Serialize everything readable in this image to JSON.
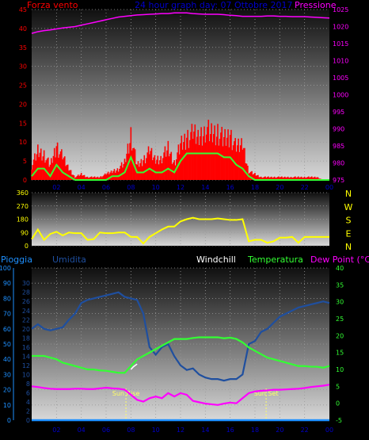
{
  "header": {
    "left_title": "Forza vento",
    "center_title": "24 hour graph day: 07 Ottobre 2017",
    "right_title": "Pressione"
  },
  "labels_bottom": {
    "pioggia": "Pioggia",
    "umidita": "Umidita",
    "windchill": "Windchill",
    "temperatura": "Temperatura",
    "dewpoint": "Dew Point (°C)"
  },
  "colors": {
    "wind": "#ff0000",
    "gust": "#ff0000",
    "wind_avg": "#33ff33",
    "pressure": "#ff00ff",
    "direction": "#ffff00",
    "humidity": "#1f4f9f",
    "temperature": "#33ff33",
    "dewpoint": "#ff00ff",
    "rain": "#1e90ff",
    "windchill": "#ffffff",
    "sun": "#ffff66"
  },
  "chart_data": [
    {
      "type": "area",
      "name": "wind",
      "x_ticks": [
        "02",
        "04",
        "06",
        "08",
        "10",
        "12",
        "14",
        "16",
        "18",
        "20",
        "22",
        "00"
      ],
      "y_left_ticks": [
        0,
        5,
        10,
        15,
        20,
        25,
        30,
        35,
        40,
        45
      ],
      "y_left_range": [
        0,
        45
      ],
      "y_right_ticks": [
        975,
        980,
        985,
        990,
        995,
        1000,
        1005,
        1010,
        1015,
        1020,
        1025
      ],
      "y_right_range": [
        975,
        1025
      ],
      "hours": [
        0,
        0.5,
        1,
        1.5,
        2,
        2.5,
        3,
        3.5,
        4,
        4.5,
        5,
        5.5,
        6,
        6.5,
        7,
        7.5,
        8,
        8.5,
        9,
        9.5,
        10,
        10.5,
        11,
        11.5,
        12,
        12.5,
        13,
        13.5,
        14,
        14.5,
        15,
        15.5,
        16,
        16.5,
        17,
        17.5,
        18,
        18.5,
        19,
        19.5,
        20,
        20.5,
        21,
        21.5,
        22,
        22.5,
        23,
        23.5,
        24
      ],
      "gust": [
        5,
        10,
        9,
        5,
        12,
        8,
        4,
        1,
        2,
        1,
        1,
        1,
        2,
        3,
        4,
        6,
        16,
        5,
        7,
        10,
        7,
        8,
        11,
        6,
        12,
        15,
        16,
        15,
        18,
        16,
        17,
        14,
        16,
        11,
        13,
        3,
        2,
        1,
        1,
        1,
        1,
        1,
        1,
        1,
        1,
        1,
        1,
        0,
        0
      ],
      "wind_avg": [
        1,
        3,
        3,
        1,
        4,
        2,
        1,
        0,
        0,
        0,
        0,
        0,
        0,
        1,
        1,
        2,
        6,
        2,
        2,
        3,
        2,
        2,
        3,
        2,
        5,
        7,
        7,
        7,
        7,
        7,
        7,
        6,
        6,
        4,
        3,
        1,
        0,
        0,
        0,
        0,
        0,
        0,
        0,
        0,
        0,
        0,
        0,
        0,
        0
      ],
      "pressure": [
        1018,
        1018.5,
        1018.8,
        1019,
        1019.3,
        1019.6,
        1019.8,
        1020,
        1020.4,
        1020.8,
        1021.2,
        1021.6,
        1022,
        1022.4,
        1022.8,
        1023,
        1023.2,
        1023.4,
        1023.5,
        1023.6,
        1023.7,
        1023.8,
        1023.8,
        1024,
        1024,
        1024,
        1023.8,
        1023.7,
        1023.6,
        1023.6,
        1023.6,
        1023.5,
        1023.3,
        1023.2,
        1023,
        1023,
        1023,
        1023,
        1023.1,
        1023.1,
        1023,
        1023,
        1022.9,
        1022.9,
        1022.9,
        1022.8,
        1022.7,
        1022.6,
        1022.5
      ]
    },
    {
      "type": "line",
      "name": "direction",
      "y_ticks": [
        0,
        90,
        180,
        270,
        360
      ],
      "y_range": [
        0,
        360
      ],
      "compass": [
        "N",
        "W",
        "S",
        "E",
        "N"
      ],
      "hours": [
        0,
        0.5,
        1,
        1.5,
        2,
        2.5,
        3,
        3.5,
        4,
        4.5,
        5,
        5.5,
        6,
        6.5,
        7,
        7.5,
        8,
        8.5,
        9,
        9.5,
        10,
        10.5,
        11,
        11.5,
        12,
        12.5,
        13,
        13.5,
        14,
        14.5,
        15,
        15.5,
        16,
        16.5,
        17,
        17.5,
        18,
        18.5,
        19,
        19.5,
        20,
        20.5,
        21,
        21.5,
        22,
        22.5,
        23,
        23.5,
        24
      ],
      "values": [
        45,
        110,
        40,
        80,
        95,
        70,
        90,
        85,
        85,
        40,
        45,
        90,
        85,
        85,
        90,
        90,
        60,
        60,
        15,
        60,
        85,
        110,
        130,
        130,
        165,
        180,
        190,
        180,
        180,
        180,
        185,
        180,
        175,
        175,
        180,
        30,
        40,
        40,
        20,
        30,
        55,
        55,
        60,
        20,
        60,
        60,
        60,
        60,
        60
      ]
    },
    {
      "type": "line",
      "name": "temperature-humidity",
      "y_left_ticks": [
        0,
        10,
        20,
        30,
        40,
        50,
        60,
        70,
        80,
        90,
        100
      ],
      "y_left_range": [
        0,
        100
      ],
      "y_mid_ticks": [
        0,
        2,
        4,
        6,
        8,
        10,
        12,
        14,
        16,
        18,
        20,
        22,
        24,
        26,
        28,
        30
      ],
      "y_right_ticks": [
        -5,
        0,
        5,
        10,
        15,
        20,
        25,
        30,
        35,
        40
      ],
      "y_right_range": [
        -5,
        40
      ],
      "sun_rise_label": "Sun Rise",
      "sun_set_label": "Sun Set",
      "sun_rise_hour": 7.6,
      "sun_set_hour": 18.9,
      "hours": [
        0,
        0.5,
        1,
        1.5,
        2,
        2.5,
        3,
        3.5,
        4,
        4.5,
        5,
        5.5,
        6,
        6.5,
        7,
        7.5,
        8,
        8.5,
        9,
        9.5,
        10,
        10.5,
        11,
        11.5,
        12,
        12.5,
        13,
        13.5,
        14,
        14.5,
        15,
        15.5,
        16,
        16.5,
        17,
        17.5,
        18,
        18.5,
        19,
        19.5,
        20,
        20.5,
        21,
        21.5,
        22,
        22.5,
        23,
        23.5,
        24
      ],
      "humidity": [
        60,
        63,
        60,
        59,
        60,
        61,
        66,
        70,
        77,
        79,
        80,
        81,
        82,
        83,
        84,
        81,
        80,
        79,
        70,
        48,
        43,
        48,
        50,
        42,
        36,
        33,
        34,
        30,
        28,
        27,
        27,
        26,
        27,
        27,
        30,
        50,
        52,
        58,
        60,
        64,
        68,
        70,
        72,
        74,
        75,
        76,
        77,
        78,
        77
      ],
      "temperature": [
        14,
        14,
        14,
        13.5,
        13,
        12,
        11.5,
        11,
        10.5,
        10,
        10,
        9.7,
        9.6,
        9.3,
        9,
        9,
        11,
        13,
        14,
        15,
        16,
        17,
        18,
        19,
        19,
        19,
        19.3,
        19.5,
        19.5,
        19.5,
        19.5,
        19.2,
        19.4,
        19,
        18,
        16.5,
        15.5,
        14.5,
        13.5,
        13,
        12.5,
        12,
        11.5,
        11,
        11,
        10.8,
        10.8,
        10.5,
        11
      ],
      "dewpoint": [
        5,
        4.8,
        4.5,
        4.3,
        4.2,
        4.2,
        4.2,
        4.3,
        4.3,
        4.2,
        4.2,
        4.4,
        4.6,
        4.4,
        4.3,
        4,
        2.5,
        1,
        0.5,
        1.5,
        2,
        1.5,
        3,
        2,
        3,
        2.5,
        0.7,
        0.3,
        -0.1,
        -0.3,
        -0.5,
        -0.1,
        0.2,
        0,
        1.5,
        3,
        3.5,
        3.7,
        3.8,
        4,
        4,
        4.1,
        4.2,
        4.3,
        4.5,
        4.8,
        5,
        5.2,
        5.5
      ],
      "rain": [
        0,
        0,
        0,
        0,
        0,
        0,
        0,
        0,
        0,
        0,
        0,
        0,
        0,
        0,
        0,
        0,
        0,
        0,
        0,
        0,
        0,
        0,
        0,
        0,
        0,
        0,
        0,
        0,
        0,
        0,
        0,
        0,
        0,
        0,
        0,
        0,
        0,
        0,
        0,
        0,
        0,
        0,
        0,
        0,
        0,
        0,
        0,
        0,
        0
      ],
      "windchill_hours": [
        8,
        8.2,
        8.5
      ],
      "windchill": [
        10,
        10.8,
        11.6
      ]
    }
  ]
}
